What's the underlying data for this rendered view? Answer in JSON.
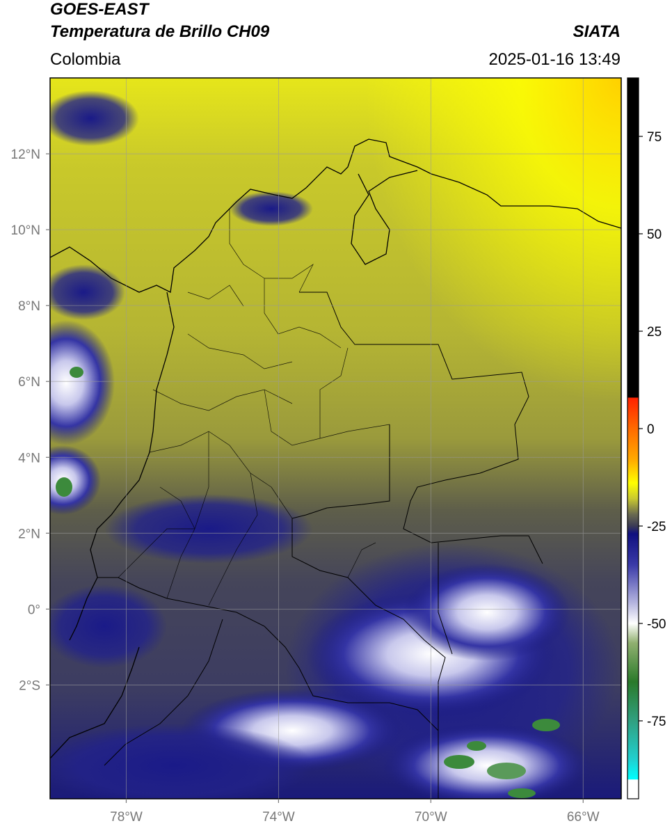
{
  "header": {
    "satellite": "GOES-EAST",
    "product": "Temperatura de Brillo CH09",
    "region": "Colombia",
    "agency": "SIATA",
    "datetime": "2025-01-16 13:49"
  },
  "map": {
    "lon_range": [
      -80,
      -65
    ],
    "lat_range": [
      -5,
      14
    ],
    "lon_ticks": [
      {
        "value": -78,
        "label": "78°W"
      },
      {
        "value": -74,
        "label": "74°W"
      },
      {
        "value": -70,
        "label": "70°W"
      },
      {
        "value": -66,
        "label": "66°W"
      }
    ],
    "lat_ticks": [
      {
        "value": 12,
        "label": "12°N"
      },
      {
        "value": 10,
        "label": "10°N"
      },
      {
        "value": 8,
        "label": "8°N"
      },
      {
        "value": 6,
        "label": "6°N"
      },
      {
        "value": 4,
        "label": "4°N"
      },
      {
        "value": 2,
        "label": "2°N"
      },
      {
        "value": 0,
        "label": "0°"
      },
      {
        "value": -2,
        "label": "2°S"
      }
    ],
    "gridlines": true
  },
  "colorbar": {
    "range": [
      -95,
      90
    ],
    "ticks": [
      {
        "value": 75,
        "label": "75"
      },
      {
        "value": 50,
        "label": "50"
      },
      {
        "value": 25,
        "label": "25"
      },
      {
        "value": 0,
        "label": "0"
      },
      {
        "value": -25,
        "label": "-25"
      },
      {
        "value": -50,
        "label": "-50"
      },
      {
        "value": -75,
        "label": "-75"
      }
    ],
    "stops": [
      {
        "value": 90,
        "color": "#000000"
      },
      {
        "value": 8,
        "color": "#000000"
      },
      {
        "value": 7.9,
        "color": "#ff2200"
      },
      {
        "value": 0,
        "color": "#ff6a00"
      },
      {
        "value": -8,
        "color": "#ffaa00"
      },
      {
        "value": -14,
        "color": "#ffff00"
      },
      {
        "value": -18,
        "color": "#c8c830"
      },
      {
        "value": -22,
        "color": "#6a6a50"
      },
      {
        "value": -25,
        "color": "#3a3a55"
      },
      {
        "value": -27,
        "color": "#101080"
      },
      {
        "value": -35,
        "color": "#3a3aa8"
      },
      {
        "value": -45,
        "color": "#b8b8e0"
      },
      {
        "value": -50,
        "color": "#ffffff"
      },
      {
        "value": -55,
        "color": "#90b070"
      },
      {
        "value": -65,
        "color": "#2a7a2a"
      },
      {
        "value": -75,
        "color": "#30a080"
      },
      {
        "value": -85,
        "color": "#20d0d0"
      },
      {
        "value": -90,
        "color": "#00ffff"
      },
      {
        "value": -90.1,
        "color": "#ffffff"
      },
      {
        "value": -95,
        "color": "#ffffff"
      }
    ]
  }
}
